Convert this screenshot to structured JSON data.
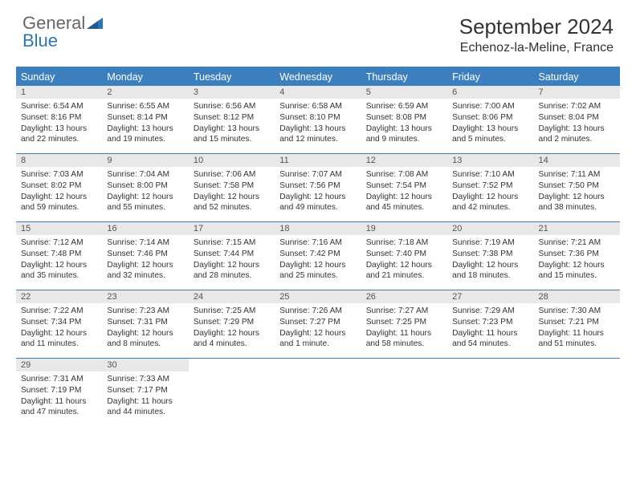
{
  "logo": {
    "text_general": "General",
    "text_blue": "Blue"
  },
  "title": "September 2024",
  "location": "Echenoz-la-Meline, France",
  "colors": {
    "header_bar": "#3b7fbf",
    "daynum_bg": "#e8e8e8",
    "text": "#333333",
    "logo_blue": "#2e75b6",
    "logo_gray": "#666666"
  },
  "days_of_week": [
    "Sunday",
    "Monday",
    "Tuesday",
    "Wednesday",
    "Thursday",
    "Friday",
    "Saturday"
  ],
  "weeks": [
    [
      {
        "num": "1",
        "sunrise": "Sunrise: 6:54 AM",
        "sunset": "Sunset: 8:16 PM",
        "day1": "Daylight: 13 hours",
        "day2": "and 22 minutes."
      },
      {
        "num": "2",
        "sunrise": "Sunrise: 6:55 AM",
        "sunset": "Sunset: 8:14 PM",
        "day1": "Daylight: 13 hours",
        "day2": "and 19 minutes."
      },
      {
        "num": "3",
        "sunrise": "Sunrise: 6:56 AM",
        "sunset": "Sunset: 8:12 PM",
        "day1": "Daylight: 13 hours",
        "day2": "and 15 minutes."
      },
      {
        "num": "4",
        "sunrise": "Sunrise: 6:58 AM",
        "sunset": "Sunset: 8:10 PM",
        "day1": "Daylight: 13 hours",
        "day2": "and 12 minutes."
      },
      {
        "num": "5",
        "sunrise": "Sunrise: 6:59 AM",
        "sunset": "Sunset: 8:08 PM",
        "day1": "Daylight: 13 hours",
        "day2": "and 9 minutes."
      },
      {
        "num": "6",
        "sunrise": "Sunrise: 7:00 AM",
        "sunset": "Sunset: 8:06 PM",
        "day1": "Daylight: 13 hours",
        "day2": "and 5 minutes."
      },
      {
        "num": "7",
        "sunrise": "Sunrise: 7:02 AM",
        "sunset": "Sunset: 8:04 PM",
        "day1": "Daylight: 13 hours",
        "day2": "and 2 minutes."
      }
    ],
    [
      {
        "num": "8",
        "sunrise": "Sunrise: 7:03 AM",
        "sunset": "Sunset: 8:02 PM",
        "day1": "Daylight: 12 hours",
        "day2": "and 59 minutes."
      },
      {
        "num": "9",
        "sunrise": "Sunrise: 7:04 AM",
        "sunset": "Sunset: 8:00 PM",
        "day1": "Daylight: 12 hours",
        "day2": "and 55 minutes."
      },
      {
        "num": "10",
        "sunrise": "Sunrise: 7:06 AM",
        "sunset": "Sunset: 7:58 PM",
        "day1": "Daylight: 12 hours",
        "day2": "and 52 minutes."
      },
      {
        "num": "11",
        "sunrise": "Sunrise: 7:07 AM",
        "sunset": "Sunset: 7:56 PM",
        "day1": "Daylight: 12 hours",
        "day2": "and 49 minutes."
      },
      {
        "num": "12",
        "sunrise": "Sunrise: 7:08 AM",
        "sunset": "Sunset: 7:54 PM",
        "day1": "Daylight: 12 hours",
        "day2": "and 45 minutes."
      },
      {
        "num": "13",
        "sunrise": "Sunrise: 7:10 AM",
        "sunset": "Sunset: 7:52 PM",
        "day1": "Daylight: 12 hours",
        "day2": "and 42 minutes."
      },
      {
        "num": "14",
        "sunrise": "Sunrise: 7:11 AM",
        "sunset": "Sunset: 7:50 PM",
        "day1": "Daylight: 12 hours",
        "day2": "and 38 minutes."
      }
    ],
    [
      {
        "num": "15",
        "sunrise": "Sunrise: 7:12 AM",
        "sunset": "Sunset: 7:48 PM",
        "day1": "Daylight: 12 hours",
        "day2": "and 35 minutes."
      },
      {
        "num": "16",
        "sunrise": "Sunrise: 7:14 AM",
        "sunset": "Sunset: 7:46 PM",
        "day1": "Daylight: 12 hours",
        "day2": "and 32 minutes."
      },
      {
        "num": "17",
        "sunrise": "Sunrise: 7:15 AM",
        "sunset": "Sunset: 7:44 PM",
        "day1": "Daylight: 12 hours",
        "day2": "and 28 minutes."
      },
      {
        "num": "18",
        "sunrise": "Sunrise: 7:16 AM",
        "sunset": "Sunset: 7:42 PM",
        "day1": "Daylight: 12 hours",
        "day2": "and 25 minutes."
      },
      {
        "num": "19",
        "sunrise": "Sunrise: 7:18 AM",
        "sunset": "Sunset: 7:40 PM",
        "day1": "Daylight: 12 hours",
        "day2": "and 21 minutes."
      },
      {
        "num": "20",
        "sunrise": "Sunrise: 7:19 AM",
        "sunset": "Sunset: 7:38 PM",
        "day1": "Daylight: 12 hours",
        "day2": "and 18 minutes."
      },
      {
        "num": "21",
        "sunrise": "Sunrise: 7:21 AM",
        "sunset": "Sunset: 7:36 PM",
        "day1": "Daylight: 12 hours",
        "day2": "and 15 minutes."
      }
    ],
    [
      {
        "num": "22",
        "sunrise": "Sunrise: 7:22 AM",
        "sunset": "Sunset: 7:34 PM",
        "day1": "Daylight: 12 hours",
        "day2": "and 11 minutes."
      },
      {
        "num": "23",
        "sunrise": "Sunrise: 7:23 AM",
        "sunset": "Sunset: 7:31 PM",
        "day1": "Daylight: 12 hours",
        "day2": "and 8 minutes."
      },
      {
        "num": "24",
        "sunrise": "Sunrise: 7:25 AM",
        "sunset": "Sunset: 7:29 PM",
        "day1": "Daylight: 12 hours",
        "day2": "and 4 minutes."
      },
      {
        "num": "25",
        "sunrise": "Sunrise: 7:26 AM",
        "sunset": "Sunset: 7:27 PM",
        "day1": "Daylight: 12 hours",
        "day2": "and 1 minute."
      },
      {
        "num": "26",
        "sunrise": "Sunrise: 7:27 AM",
        "sunset": "Sunset: 7:25 PM",
        "day1": "Daylight: 11 hours",
        "day2": "and 58 minutes."
      },
      {
        "num": "27",
        "sunrise": "Sunrise: 7:29 AM",
        "sunset": "Sunset: 7:23 PM",
        "day1": "Daylight: 11 hours",
        "day2": "and 54 minutes."
      },
      {
        "num": "28",
        "sunrise": "Sunrise: 7:30 AM",
        "sunset": "Sunset: 7:21 PM",
        "day1": "Daylight: 11 hours",
        "day2": "and 51 minutes."
      }
    ],
    [
      {
        "num": "29",
        "sunrise": "Sunrise: 7:31 AM",
        "sunset": "Sunset: 7:19 PM",
        "day1": "Daylight: 11 hours",
        "day2": "and 47 minutes."
      },
      {
        "num": "30",
        "sunrise": "Sunrise: 7:33 AM",
        "sunset": "Sunset: 7:17 PM",
        "day1": "Daylight: 11 hours",
        "day2": "and 44 minutes."
      },
      null,
      null,
      null,
      null,
      null
    ]
  ]
}
